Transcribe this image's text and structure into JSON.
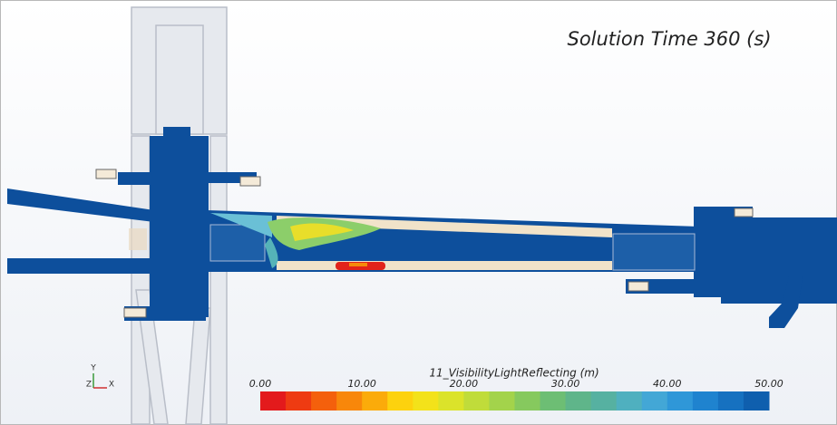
{
  "annotation": "Solution Time 360 (s)",
  "triad": {
    "y": "Y",
    "z": "Z",
    "x": "X"
  },
  "colorbar": {
    "label": "11_VisibilityLightReflecting (m)",
    "ticks": [
      "0.00",
      "10.00",
      "20.00",
      "30.00",
      "40.00",
      "50.00"
    ],
    "colors": [
      "#e31a1c",
      "#ee3b12",
      "#f4600c",
      "#f8870a",
      "#fbab0a",
      "#fdd20e",
      "#f3e21a",
      "#dbe32a",
      "#c0dc3a",
      "#a3d34b",
      "#86c95e",
      "#6dbe74",
      "#5fb58a",
      "#56b1a1",
      "#4fb0bf",
      "#43a7d6",
      "#2f97d8",
      "#1f83cf",
      "#1671c0",
      "#0f5fae"
    ]
  }
}
